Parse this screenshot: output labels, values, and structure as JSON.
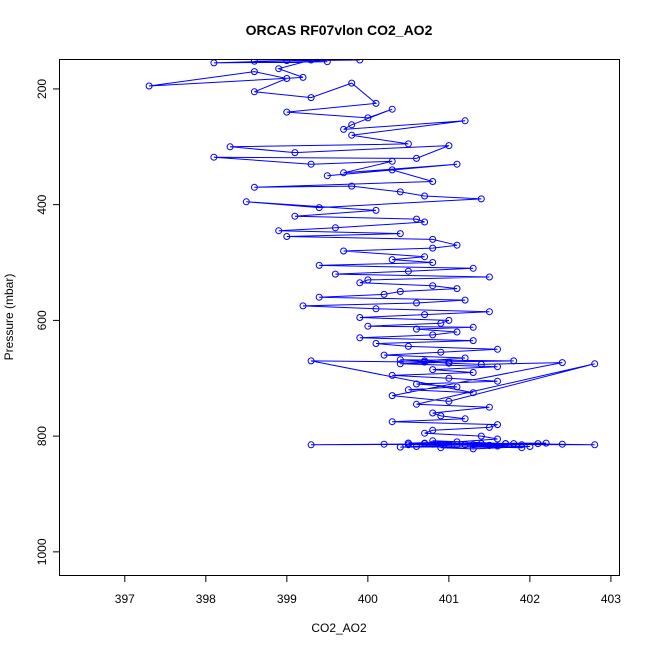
{
  "chart_data": {
    "type": "line",
    "title": "ORCAS RF07vlon CO2_AO2",
    "xlabel": "CO2_AO2",
    "ylabel": "Pressure (mbar)",
    "xlim": [
      396.2,
      403.1
    ],
    "ylim": [
      1040,
      150
    ],
    "y_reversed": true,
    "grid": false,
    "legend": "none",
    "x_ticks": [
      397,
      398,
      399,
      400,
      401,
      402,
      403
    ],
    "y_ticks": [
      200,
      400,
      600,
      800,
      1000
    ],
    "series": [
      {
        "name": "",
        "color": "#0000ff",
        "marker": "open-circle",
        "x": [
          399.9,
          398.6,
          399.0,
          399.5,
          398.1,
          399.3,
          398.9,
          399.2,
          397.3,
          398.6,
          399.0,
          398.6,
          399.3,
          399.8,
          400.1,
          399.0,
          400.0,
          400.3,
          399.8,
          399.7,
          401.2,
          399.8,
          400.5,
          398.3,
          399.1,
          401.0,
          400.6,
          398.1,
          399.3,
          400.3,
          399.7,
          401.1,
          399.5,
          400.3,
          400.8,
          398.6,
          399.8,
          400.4,
          400.7,
          401.4,
          399.4,
          398.5,
          400.1,
          399.1,
          400.6,
          400.7,
          399.6,
          398.9,
          400.4,
          399.0,
          400.8,
          401.1,
          400.8,
          399.7,
          400.7,
          400.3,
          400.8,
          399.4,
          401.3,
          400.5,
          399.6,
          401.5,
          400.0,
          399.9,
          400.8,
          401.1,
          400.4,
          400.2,
          399.4,
          401.2,
          400.6,
          399.2,
          400.1,
          401.5,
          400.7,
          399.9,
          401.0,
          400.9,
          400.0,
          401.3,
          400.6,
          401.1,
          400.8,
          399.9,
          401.3,
          400.1,
          400.5,
          401.6,
          400.9,
          400.2,
          401.2,
          400.7,
          401.0,
          400.4,
          401.6,
          400.8,
          401.3,
          400.3,
          401.0,
          401.6,
          400.6,
          401.1,
          400.5,
          401.3,
          399.3,
          400.7,
          401.8,
          400.4,
          401.0,
          401.4,
          402.4,
          400.3,
          401.0,
          402.8,
          400.6,
          401.5,
          400.8,
          400.9,
          401.2,
          400.3,
          401.6,
          401.5,
          400.8,
          400.7,
          401.4,
          401.6,
          401.1,
          400.5,
          401.7,
          400.8,
          401.2,
          400.6,
          401.9,
          401.3,
          400.7,
          401.5,
          400.9,
          401.8,
          401.2,
          400.5,
          401.6,
          401.0,
          402.1,
          400.8,
          399.3,
          401.4,
          402.4,
          400.5,
          401.7,
          402.8,
          400.2,
          401.5,
          402.2,
          400.7,
          401.9,
          400.9,
          401.3,
          402.0,
          400.4,
          401.1
        ],
        "y": [
          150,
          152,
          151,
          153,
          155,
          150,
          165,
          180,
          195,
          170,
          182,
          205,
          215,
          190,
          225,
          240,
          250,
          235,
          262,
          270,
          255,
          280,
          295,
          300,
          310,
          298,
          320,
          318,
          330,
          325,
          345,
          330,
          350,
          340,
          360,
          370,
          368,
          378,
          385,
          390,
          405,
          395,
          410,
          420,
          425,
          430,
          440,
          445,
          450,
          455,
          460,
          470,
          475,
          480,
          490,
          495,
          500,
          505,
          510,
          515,
          520,
          525,
          530,
          535,
          540,
          545,
          550,
          555,
          560,
          565,
          570,
          575,
          580,
          585,
          590,
          595,
          600,
          605,
          610,
          612,
          615,
          620,
          625,
          630,
          635,
          640,
          645,
          650,
          655,
          660,
          665,
          670,
          672,
          675,
          680,
          685,
          690,
          695,
          700,
          705,
          710,
          715,
          720,
          725,
          670,
          672,
          670,
          668,
          674,
          676,
          673,
          730,
          740,
          675,
          745,
          750,
          760,
          765,
          770,
          775,
          780,
          785,
          790,
          795,
          800,
          805,
          810,
          812,
          813,
          808,
          815,
          818,
          820,
          815,
          812,
          816,
          814,
          813,
          815,
          812,
          817,
          815,
          813,
          814,
          815,
          813,
          814,
          815,
          813,
          815,
          814,
          816,
          812,
          813,
          815,
          820,
          822,
          818,
          819,
          815
        ]
      }
    ]
  }
}
